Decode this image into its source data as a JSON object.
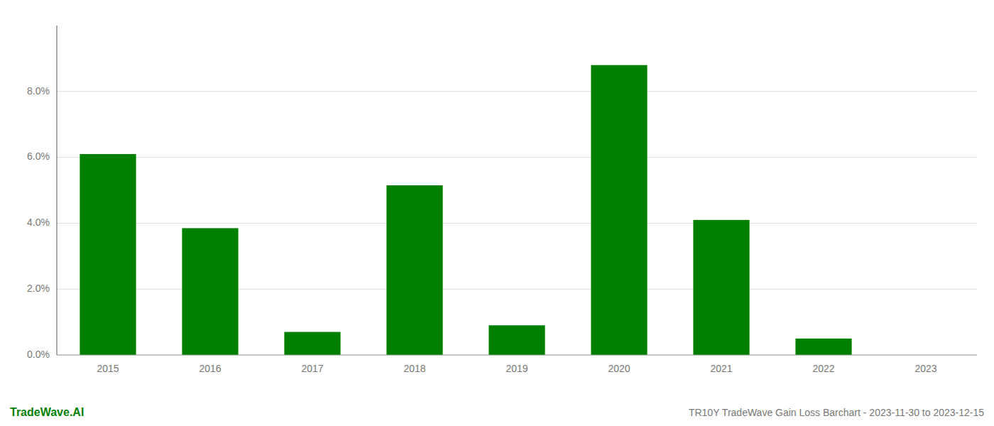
{
  "chart_data": {
    "type": "bar",
    "title": "TR10Y TradeWave Gain Loss Barchart - 2023-11-30 to 2023-12-15",
    "annotations": [
      "TradeWave.AI"
    ],
    "categories": [
      "2015",
      "2016",
      "2017",
      "2018",
      "2019",
      "2020",
      "2021",
      "2022",
      "2023"
    ],
    "values": [
      0.061,
      0.0385,
      0.007,
      0.0515,
      0.009,
      0.088,
      0.041,
      0.005,
      0.0
    ],
    "color": "#008000",
    "ylim": [
      0,
      0.1
    ],
    "yticks": [
      {
        "value": 0.0,
        "label": "0.0%"
      },
      {
        "value": 0.02,
        "label": "2.0%"
      },
      {
        "value": 0.04,
        "label": "4.0%"
      },
      {
        "value": 0.06,
        "label": "6.0%"
      },
      {
        "value": 0.08,
        "label": "8.0%"
      }
    ],
    "grid": true
  }
}
